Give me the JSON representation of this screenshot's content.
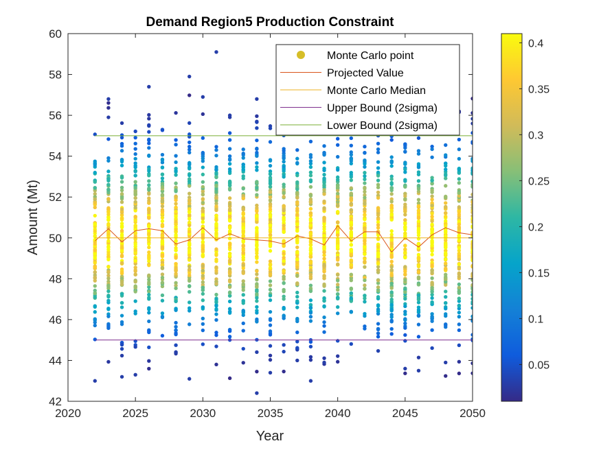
{
  "chart_data": {
    "type": "scatter",
    "title": "Demand Region5 Production Constraint",
    "xlabel": "Year",
    "ylabel": "Amount (Mt)",
    "xlim": [
      2020,
      2050
    ],
    "ylim": [
      42,
      60
    ],
    "xticks": [
      "2020",
      "2025",
      "2030",
      "2035",
      "2040",
      "2045",
      "2050"
    ],
    "yticks": [
      "42",
      "44",
      "46",
      "48",
      "50",
      "52",
      "54",
      "56",
      "58",
      "60"
    ],
    "colorbar": {
      "min": 0.01,
      "max": 0.41,
      "ticks": [
        "0.05",
        "0.1",
        "0.15",
        "0.2",
        "0.25",
        "0.3",
        "0.35",
        "0.4"
      ],
      "tick_values": [
        0.05,
        0.1,
        0.15,
        0.2,
        0.25,
        0.3,
        0.35,
        0.4
      ],
      "colormap": "parula"
    },
    "legend": {
      "placement": "top-right",
      "entries": [
        {
          "label": "Monte Carlo point",
          "marker": "dot",
          "color": "#d6be28"
        },
        {
          "label": "Projected Value",
          "marker": "line",
          "color": "#d95319"
        },
        {
          "label": "Monte Carlo Median",
          "marker": "line",
          "color": "#edb120"
        },
        {
          "label": "Upper Bound (2sigma)",
          "marker": "line",
          "color": "#7e2f8e"
        },
        {
          "label": "Lower Bound (2sigma)",
          "marker": "line",
          "color": "#77ac30"
        }
      ]
    },
    "years": [
      2022,
      2023,
      2024,
      2025,
      2026,
      2027,
      2028,
      2029,
      2030,
      2031,
      2032,
      2033,
      2034,
      2035,
      2036,
      2037,
      2038,
      2039,
      2040,
      2041,
      2042,
      2043,
      2044,
      2045,
      2046,
      2047,
      2048,
      2049,
      2050
    ],
    "series": [
      {
        "name": "Projected Value",
        "color": "#d95319",
        "values": [
          49.85,
          50.45,
          49.8,
          50.35,
          50.45,
          50.35,
          49.7,
          49.9,
          50.5,
          49.9,
          50.2,
          49.95,
          49.9,
          49.85,
          49.7,
          50.1,
          49.95,
          49.65,
          50.6,
          49.85,
          50.3,
          50.3,
          49.3,
          50.0,
          49.55,
          50.15,
          50.5,
          50.25,
          50.15
        ]
      },
      {
        "name": "Monte Carlo Median",
        "color": "#edb120",
        "y": 50.0
      },
      {
        "name": "Upper Bound (2sigma)",
        "color": "#7e2f8e",
        "y": 45.0
      },
      {
        "name": "Lower Bound (2sigma)",
        "color": "#77ac30",
        "y": 55.0
      }
    ],
    "outliers": [
      {
        "x": 2022,
        "y": 43.0
      },
      {
        "x": 2023,
        "y": 56.8
      },
      {
        "x": 2024,
        "y": 43.2
      },
      {
        "x": 2025,
        "y": 43.3
      },
      {
        "x": 2026,
        "y": 57.4
      },
      {
        "x": 2028,
        "y": 44.4
      },
      {
        "x": 2029,
        "y": 57.9
      },
      {
        "x": 2029,
        "y": 43.1
      },
      {
        "x": 2030,
        "y": 56.9
      },
      {
        "x": 2031,
        "y": 59.1
      },
      {
        "x": 2032,
        "y": 56.0
      },
      {
        "x": 2034,
        "y": 56.8
      },
      {
        "x": 2034,
        "y": 42.4
      },
      {
        "x": 2035,
        "y": 43.4
      },
      {
        "x": 2037,
        "y": 44.0
      },
      {
        "x": 2038,
        "y": 43.0
      },
      {
        "x": 2039,
        "y": 43.9
      },
      {
        "x": 2041,
        "y": 56.3
      },
      {
        "x": 2045,
        "y": 43.6
      },
      {
        "x": 2046,
        "y": 43.5
      },
      {
        "x": 2048,
        "y": 43.9
      },
      {
        "x": 2050,
        "y": 55.6
      }
    ]
  }
}
